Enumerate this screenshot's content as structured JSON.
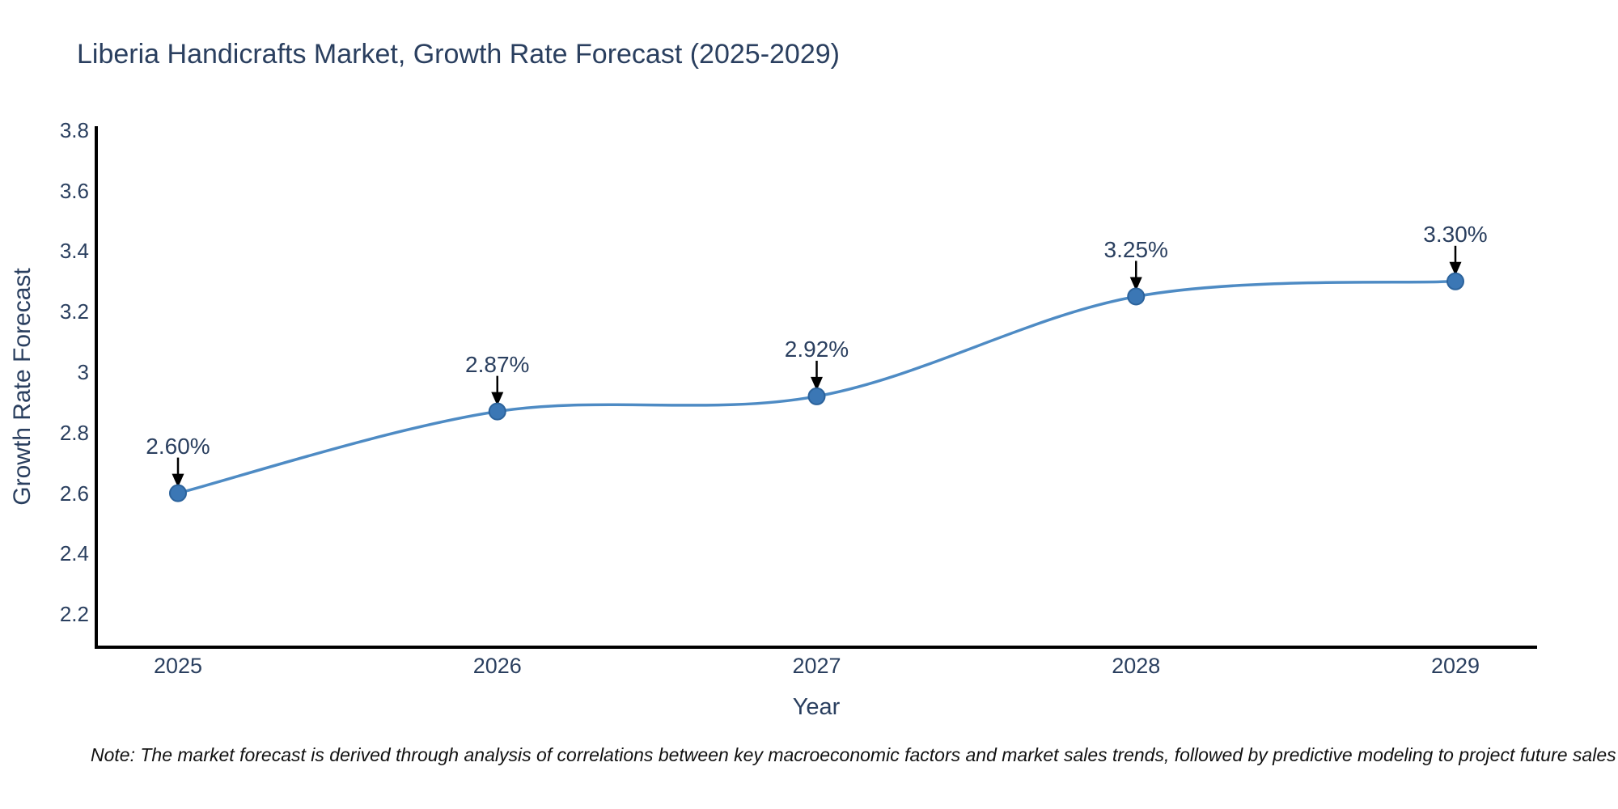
{
  "note": "Note: The market forecast is derived through analysis of correlations between key macroeconomic factors and market sales trends, followed by predictive modeling to project future sales",
  "colors": {
    "background": "#ffffff",
    "title_text": "#2a3f5f",
    "axis_text": "#2a3f5f",
    "axis_line": "#000000",
    "series_line": "#4e8bc4",
    "marker_fill": "#3b77b5",
    "marker_edge": "#2c639c",
    "arrow": "#000000",
    "note_text": "#111111"
  },
  "chart_data": {
    "type": "line",
    "title": "Liberia Handicrafts Market, Growth Rate Forecast (2025-2029)",
    "xlabel": "Year",
    "ylabel": "Growth Rate Forecast",
    "x_tick_labels": [
      "2025",
      "2026",
      "2027",
      "2028",
      "2029"
    ],
    "x": [
      2025,
      2026,
      2027,
      2028,
      2029
    ],
    "series": [
      {
        "name": "Growth Rate Forecast",
        "values": [
          2.6,
          2.87,
          2.92,
          3.25,
          3.3
        ],
        "point_labels": [
          "2.60%",
          "2.87%",
          "2.92%",
          "3.25%",
          "3.30%"
        ]
      }
    ],
    "y_tick_labels": [
      "3.8",
      "3.6",
      "3.4",
      "3.2",
      "3",
      "2.8",
      "2.6",
      "2.4",
      "2.2"
    ],
    "ylim": [
      2.09,
      3.83
    ],
    "line_shape": "spline",
    "grid": false,
    "legend_position": "none",
    "annotations": "value labels with black arrows pointing to each data point"
  }
}
